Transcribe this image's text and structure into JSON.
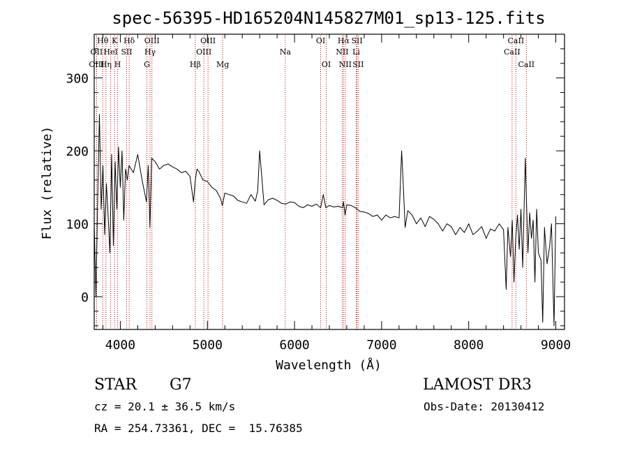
{
  "chart_data": {
    "type": "line",
    "title": "spec-56395-HD165204N145827M01_sp13-125.fits",
    "xlabel": "Wavelength (Å)",
    "ylabel": "Flux (relative)",
    "xlim": [
      3700,
      9100
    ],
    "ylim": [
      -45,
      360
    ],
    "xticks": [
      4000,
      5000,
      6000,
      7000,
      8000,
      9000
    ],
    "yticks": [
      0,
      100,
      200,
      300
    ],
    "grid": false,
    "series": [
      {
        "values_x": [
          3700,
          3720,
          3740,
          3760,
          3780,
          3800,
          3820,
          3840,
          3860,
          3880,
          3900,
          3920,
          3940,
          3960,
          3980,
          4000,
          4020,
          4040,
          4060,
          4080,
          4100,
          4150,
          4200,
          4250,
          4300,
          4320,
          4340,
          4360,
          4400,
          4450,
          4500,
          4550,
          4600,
          4650,
          4700,
          4750,
          4800,
          4840,
          4861,
          4880,
          4900,
          4950,
          5000,
          5050,
          5100,
          5150,
          5172,
          5200,
          5250,
          5300,
          5350,
          5400,
          5450,
          5500,
          5550,
          5577,
          5600,
          5650,
          5700,
          5750,
          5800,
          5850,
          5900,
          5950,
          6000,
          6050,
          6100,
          6150,
          6200,
          6250,
          6300,
          6330,
          6360,
          6400,
          6450,
          6500,
          6550,
          6563,
          6580,
          6600,
          6650,
          6700,
          6750,
          6800,
          6850,
          6900,
          6950,
          7000,
          7050,
          7100,
          7150,
          7200,
          7230,
          7250,
          7270,
          7290,
          7300,
          7350,
          7400,
          7450,
          7500,
          7550,
          7600,
          7650,
          7700,
          7750,
          7800,
          7850,
          7900,
          7950,
          8000,
          8050,
          8100,
          8150,
          8200,
          8250,
          8300,
          8350,
          8400,
          8430,
          8450,
          8480,
          8500,
          8520,
          8540,
          8560,
          8580,
          8600,
          8620,
          8650,
          8680,
          8700,
          8720,
          8740,
          8760,
          8780,
          8800,
          8830,
          8850,
          8870,
          8900,
          8930,
          8950,
          8980,
          9000
        ],
        "values_y": [
          100,
          0,
          135,
          250,
          120,
          180,
          85,
          155,
          110,
          60,
          195,
          70,
          185,
          120,
          205,
          150,
          200,
          105,
          175,
          160,
          180,
          170,
          195,
          160,
          130,
          180,
          95,
          190,
          185,
          175,
          180,
          182,
          178,
          175,
          170,
          172,
          165,
          130,
          160,
          175,
          172,
          160,
          158,
          150,
          146,
          135,
          125,
          142,
          140,
          138,
          132,
          130,
          128,
          140,
          131,
          145,
          200,
          126,
          133,
          135,
          132,
          128,
          127,
          130,
          129,
          124,
          122,
          126,
          124,
          127,
          122,
          140,
          122,
          125,
          123,
          124,
          122,
          130,
          112,
          126,
          125,
          122,
          117,
          116,
          114,
          110,
          112,
          105,
          112,
          108,
          110,
          108,
          200,
          150,
          95,
          110,
          118,
          112,
          100,
          108,
          96,
          110,
          106,
          100,
          90,
          100,
          96,
          85,
          95,
          88,
          100,
          85,
          90,
          96,
          80,
          93,
          90,
          100,
          92,
          10,
          95,
          55,
          105,
          20,
          80,
          112,
          65,
          120,
          40,
          190,
          60,
          115,
          80,
          105,
          20,
          120,
          60,
          50,
          -35,
          95,
          45,
          70,
          100,
          -40,
          110
        ]
      }
    ],
    "line_markers": [
      {
        "name": "Hθ",
        "x": 3798,
        "row": 1
      },
      {
        "name": "OII",
        "x": 3727,
        "row": 2
      },
      {
        "name": "OIII",
        "x": 3727,
        "row": 3
      },
      {
        "name": "Hη",
        "x": 3835,
        "row": 3
      },
      {
        "name": "HeI",
        "x": 3889,
        "row": 2
      },
      {
        "name": "K",
        "x": 3934,
        "row": 1
      },
      {
        "name": "H",
        "x": 3969,
        "row": 3
      },
      {
        "name": "SII",
        "x": 4072,
        "row": 2
      },
      {
        "name": "Hδ",
        "x": 4102,
        "row": 1
      },
      {
        "name": "G",
        "x": 4305,
        "row": 3
      },
      {
        "name": "Hγ",
        "x": 4341,
        "row": 2
      },
      {
        "name": "OIII",
        "x": 4363,
        "row": 1
      },
      {
        "name": "Hβ",
        "x": 4861,
        "row": 3
      },
      {
        "name": "OIII",
        "x": 4959,
        "row": 2
      },
      {
        "name": "OIII",
        "x": 5007,
        "row": 1
      },
      {
        "name": "Mg",
        "x": 5175,
        "row": 3
      },
      {
        "name": "Na",
        "x": 5894,
        "row": 2
      },
      {
        "name": "OI",
        "x": 6300,
        "row": 1
      },
      {
        "name": "OI",
        "x": 6364,
        "row": 3
      },
      {
        "name": "NII",
        "x": 6548,
        "row": 2
      },
      {
        "name": "Hα",
        "x": 6563,
        "row": 1
      },
      {
        "name": "NII",
        "x": 6583,
        "row": 3
      },
      {
        "name": "Li",
        "x": 6708,
        "row": 2
      },
      {
        "name": "SII",
        "x": 6717,
        "row": 1
      },
      {
        "name": "SII",
        "x": 6731,
        "row": 3
      },
      {
        "name": "CaII",
        "x": 8498,
        "row": 2
      },
      {
        "name": "CaII",
        "x": 8542,
        "row": 1
      },
      {
        "name": "CaII",
        "x": 8662,
        "row": 3
      }
    ]
  },
  "info": {
    "object_class": "STAR",
    "subclass": "G7",
    "survey": "LAMOST DR3",
    "cz": "cz = 20.1 ± 36.5 km/s",
    "obs_date": "Obs-Date: 20130412",
    "coords": "RA = 254.73361, DEC =  15.76385"
  },
  "colors": {
    "spectrum": "#000000",
    "marker_line": "#cc0000",
    "axis": "#000000",
    "background": "#ffffff"
  }
}
